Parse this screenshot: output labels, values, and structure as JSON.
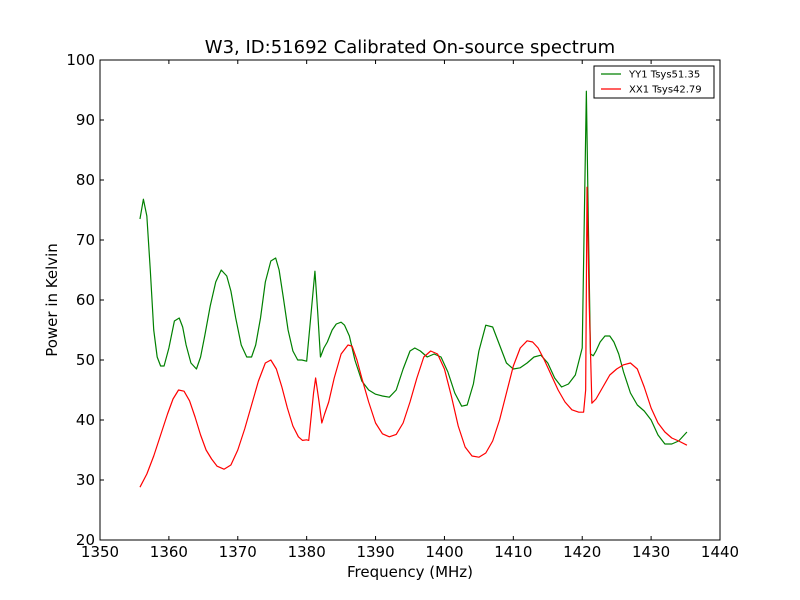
{
  "chart_data": {
    "type": "line",
    "title": "W3, ID:51692 Calibrated On-source spectrum",
    "xlabel": "Frequency (MHz)",
    "ylabel": "Power in Kelvin",
    "xlim": [
      1350,
      1440
    ],
    "ylim": [
      20,
      100
    ],
    "xticks": [
      1350,
      1360,
      1370,
      1380,
      1390,
      1400,
      1410,
      1420,
      1430,
      1440
    ],
    "yticks": [
      20,
      30,
      40,
      50,
      60,
      70,
      80,
      90,
      100
    ],
    "grid": false,
    "legend_position": "top-right",
    "series": [
      {
        "name": "YY1 Tsys51.35",
        "color": "#008000",
        "x": [
          1355.8,
          1356.3,
          1356.8,
          1357.3,
          1357.8,
          1358.3,
          1358.8,
          1359.3,
          1360.0,
          1360.8,
          1361.5,
          1362.0,
          1362.5,
          1363.2,
          1364.0,
          1364.6,
          1365.2,
          1366.0,
          1366.8,
          1367.6,
          1368.4,
          1369.0,
          1369.7,
          1370.5,
          1371.3,
          1372.0,
          1372.6,
          1373.3,
          1374.0,
          1374.8,
          1375.5,
          1376.0,
          1376.6,
          1377.3,
          1378.0,
          1378.7,
          1379.3,
          1380.0,
          1380.5,
          1381.2,
          1381.6,
          1382.0,
          1382.5,
          1383.0,
          1383.7,
          1384.3,
          1385.0,
          1385.5,
          1386.2,
          1387.0,
          1388.0,
          1389.0,
          1390.0,
          1391.0,
          1392.0,
          1393.0,
          1394.0,
          1395.0,
          1395.7,
          1396.5,
          1397.5,
          1398.5,
          1399.5,
          1400.5,
          1401.5,
          1402.5,
          1403.3,
          1404.2,
          1405.0,
          1406.0,
          1407.0,
          1408.0,
          1409.0,
          1410.0,
          1411.0,
          1412.0,
          1413.0,
          1414.0,
          1415.0,
          1416.0,
          1417.0,
          1418.0,
          1419.0,
          1420.0,
          1420.6,
          1420.9,
          1421.2,
          1421.6,
          1422.0,
          1422.6,
          1423.3,
          1424.0,
          1424.6,
          1425.3,
          1426.0,
          1427.0,
          1428.0,
          1429.0,
          1430.0,
          1431.0,
          1432.0,
          1433.0,
          1434.0,
          1435.2
        ],
        "y": [
          73.5,
          76.8,
          74.0,
          65.0,
          55.0,
          50.5,
          49.0,
          49.0,
          52.0,
          56.5,
          57.0,
          55.5,
          52.5,
          49.5,
          48.5,
          50.5,
          54.0,
          59.0,
          63.0,
          65.0,
          64.0,
          61.5,
          57.0,
          52.5,
          50.5,
          50.5,
          52.5,
          57.0,
          63.0,
          66.5,
          67.0,
          65.0,
          60.5,
          55.0,
          51.5,
          50.0,
          50.0,
          49.8,
          56.0,
          64.8,
          58.0,
          50.5,
          52.0,
          53.0,
          55.0,
          56.0,
          56.3,
          55.8,
          54.0,
          50.0,
          46.5,
          45.0,
          44.3,
          44.0,
          43.8,
          45.0,
          48.5,
          51.5,
          52.0,
          51.5,
          50.5,
          51.0,
          50.5,
          48.0,
          44.5,
          42.3,
          42.5,
          46.0,
          51.5,
          55.8,
          55.5,
          52.5,
          49.5,
          48.5,
          48.7,
          49.5,
          50.5,
          50.8,
          49.5,
          47.0,
          45.5,
          46.0,
          47.5,
          52.0,
          94.8,
          72.0,
          51.0,
          50.7,
          51.5,
          53.0,
          54.0,
          54.0,
          53.0,
          51.0,
          48.0,
          44.5,
          42.5,
          41.5,
          40.0,
          37.5,
          36.0,
          36.0,
          36.5,
          38.0
        ]
      },
      {
        "name": "XX1 Tsys42.79",
        "color": "#ff0000",
        "x": [
          1355.8,
          1356.8,
          1357.8,
          1358.8,
          1359.8,
          1360.6,
          1361.4,
          1362.2,
          1363.0,
          1363.8,
          1364.6,
          1365.4,
          1366.2,
          1367.0,
          1368.0,
          1369.0,
          1370.0,
          1371.0,
          1372.0,
          1373.0,
          1374.0,
          1374.8,
          1375.6,
          1376.4,
          1377.2,
          1378.0,
          1378.8,
          1379.4,
          1380.0,
          1380.3,
          1381.0,
          1381.3,
          1381.8,
          1382.2,
          1382.6,
          1383.2,
          1384.0,
          1385.0,
          1386.0,
          1386.6,
          1387.3,
          1388.0,
          1389.0,
          1390.0,
          1391.0,
          1392.0,
          1393.0,
          1394.0,
          1395.0,
          1396.0,
          1397.0,
          1398.0,
          1399.0,
          1400.0,
          1401.0,
          1402.0,
          1403.0,
          1404.0,
          1405.0,
          1406.0,
          1407.0,
          1408.0,
          1409.0,
          1410.0,
          1411.0,
          1412.0,
          1412.8,
          1413.6,
          1414.5,
          1415.5,
          1416.5,
          1417.5,
          1418.5,
          1419.5,
          1420.2,
          1420.5,
          1420.7,
          1421.0,
          1421.4,
          1422.0,
          1423.0,
          1424.0,
          1425.0,
          1426.0,
          1427.0,
          1428.0,
          1429.0,
          1430.0,
          1431.0,
          1432.0,
          1433.0,
          1434.0,
          1435.2
        ],
        "y": [
          28.8,
          31.0,
          34.0,
          37.5,
          41.0,
          43.5,
          45.0,
          44.8,
          43.2,
          40.5,
          37.5,
          35.0,
          33.5,
          32.3,
          31.8,
          32.5,
          35.0,
          38.5,
          42.5,
          46.5,
          49.5,
          50.0,
          48.5,
          45.5,
          42.0,
          39.0,
          37.2,
          36.6,
          36.7,
          36.6,
          44.5,
          47.0,
          43.0,
          39.5,
          41.0,
          43.0,
          47.0,
          51.0,
          52.5,
          52.3,
          50.0,
          47.0,
          43.0,
          39.5,
          37.7,
          37.2,
          37.6,
          39.5,
          43.0,
          47.0,
          50.5,
          51.5,
          51.0,
          48.5,
          44.0,
          39.0,
          35.5,
          34.0,
          33.8,
          34.5,
          36.5,
          40.0,
          44.5,
          49.0,
          52.0,
          53.2,
          53.0,
          52.0,
          50.0,
          47.5,
          45.0,
          43.0,
          41.7,
          41.3,
          41.3,
          45.0,
          78.8,
          60.0,
          42.8,
          43.5,
          45.5,
          47.5,
          48.5,
          49.2,
          49.5,
          48.5,
          45.5,
          42.0,
          39.5,
          38.0,
          37.0,
          36.5,
          35.8
        ]
      }
    ]
  }
}
